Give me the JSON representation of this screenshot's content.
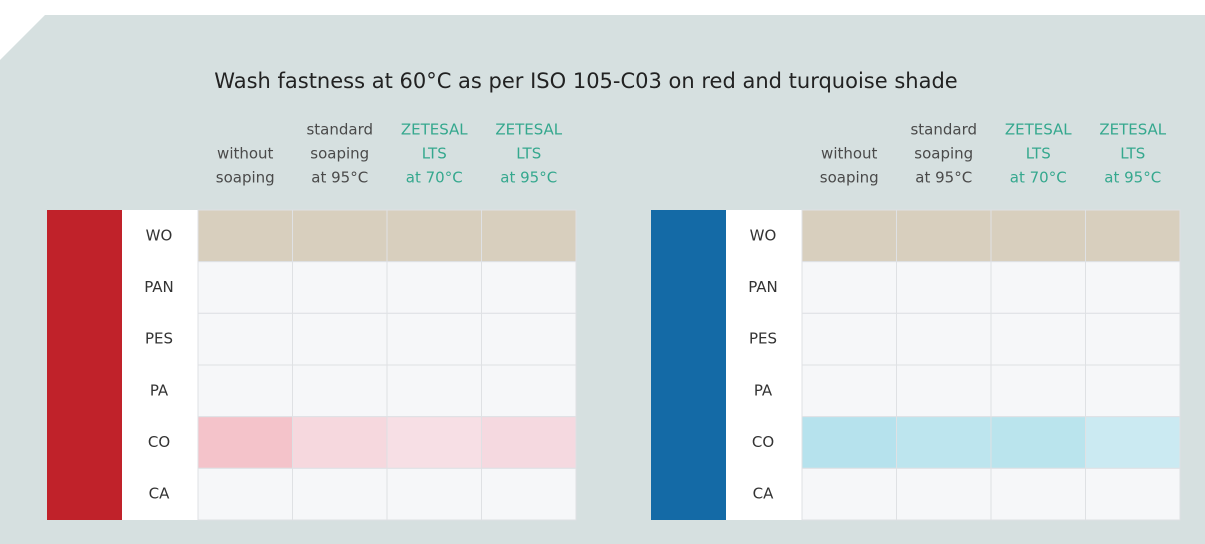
{
  "title": "Wash fastness at 60°C as per ISO 105-C03  on red and turquoise shade",
  "panels": [
    {
      "columns": [
        {
          "lines": [
            "without",
            "soaping"
          ]
        },
        {
          "lines": [
            "standard",
            "soaping",
            "at 95°C"
          ]
        },
        {
          "lines": [
            "ZETESAL",
            "LTS",
            "at 70°C"
          ]
        },
        {
          "lines": [
            "ZETESAL",
            "LTS",
            "at 95°C"
          ]
        }
      ],
      "rows": [
        "WO",
        "PAN",
        "PES",
        "PA",
        "CO",
        "CA"
      ]
    },
    {
      "columns": [
        {
          "lines": [
            "without",
            "soaping"
          ]
        },
        {
          "lines": [
            "standard",
            "soaping",
            "at 95°C"
          ]
        },
        {
          "lines": [
            "ZETESAL",
            "LTS",
            "at 70°C"
          ]
        },
        {
          "lines": [
            "ZETESAL",
            "LTS",
            "at 95°C"
          ]
        }
      ],
      "rows": [
        "WO",
        "PAN",
        "PES",
        "PA",
        "CO",
        "CA"
      ]
    }
  ]
}
